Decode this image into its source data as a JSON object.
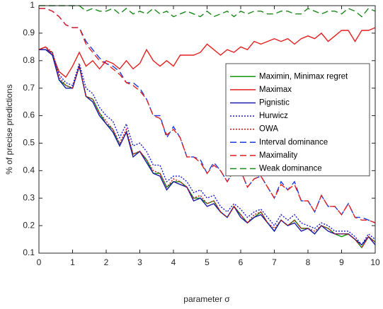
{
  "chart_data": {
    "type": "line",
    "xlabel": "parameter σ",
    "ylabel": "% of precise predictions",
    "x": [
      0,
      0.2,
      0.4,
      0.6,
      0.8,
      1,
      1.2,
      1.4,
      1.6,
      1.8,
      2,
      2.2,
      2.4,
      2.6,
      2.8,
      3,
      3.2,
      3.4,
      3.6,
      3.8,
      4,
      4.2,
      4.4,
      4.6,
      4.8,
      5,
      5.2,
      5.4,
      5.6,
      5.8,
      6,
      6.2,
      6.4,
      6.6,
      6.8,
      7,
      7.2,
      7.4,
      7.6,
      7.8,
      8,
      8.2,
      8.4,
      8.6,
      8.8,
      9,
      9.2,
      9.4,
      9.6,
      9.8,
      10
    ],
    "xlim": [
      0,
      10
    ],
    "xticks": [
      0,
      1,
      2,
      3,
      4,
      5,
      6,
      7,
      8,
      9,
      10
    ],
    "ylim": [
      0.1,
      1
    ],
    "yticks": [
      0.1,
      0.2,
      0.3,
      0.4,
      0.5,
      0.6,
      0.7,
      0.8,
      0.9,
      1
    ],
    "legend": "right",
    "series": [
      {
        "name": "Maximin, Minimax regret",
        "color": "#119911",
        "style": "solid",
        "values": [
          0.84,
          0.84,
          0.83,
          0.73,
          0.71,
          0.7,
          0.78,
          0.67,
          0.66,
          0.61,
          0.57,
          0.55,
          0.49,
          0.54,
          0.46,
          0.47,
          0.44,
          0.39,
          0.39,
          0.34,
          0.36,
          0.36,
          0.34,
          0.3,
          0.3,
          0.28,
          0.29,
          0.25,
          0.23,
          0.27,
          0.24,
          0.21,
          0.23,
          0.25,
          0.21,
          0.18,
          0.22,
          0.2,
          0.22,
          0.19,
          0.19,
          0.17,
          0.2,
          0.19,
          0.17,
          0.16,
          0.17,
          0.15,
          0.12,
          0.16,
          0.14
        ]
      },
      {
        "name": "Maximax",
        "color": "#e41f1f",
        "style": "solid",
        "values": [
          0.84,
          0.85,
          0.82,
          0.76,
          0.74,
          0.78,
          0.83,
          0.78,
          0.8,
          0.77,
          0.8,
          0.79,
          0.77,
          0.8,
          0.77,
          0.79,
          0.84,
          0.8,
          0.78,
          0.8,
          0.78,
          0.82,
          0.82,
          0.82,
          0.83,
          0.86,
          0.84,
          0.82,
          0.84,
          0.83,
          0.85,
          0.84,
          0.87,
          0.86,
          0.87,
          0.88,
          0.87,
          0.88,
          0.86,
          0.88,
          0.89,
          0.88,
          0.9,
          0.87,
          0.89,
          0.91,
          0.91,
          0.87,
          0.91,
          0.91,
          0.92
        ]
      },
      {
        "name": "Pignistic",
        "color": "#1a1aa8",
        "style": "solid",
        "values": [
          0.84,
          0.84,
          0.82,
          0.73,
          0.7,
          0.7,
          0.78,
          0.67,
          0.65,
          0.6,
          0.57,
          0.54,
          0.49,
          0.54,
          0.45,
          0.47,
          0.43,
          0.39,
          0.38,
          0.33,
          0.36,
          0.35,
          0.34,
          0.29,
          0.3,
          0.27,
          0.28,
          0.25,
          0.23,
          0.27,
          0.23,
          0.21,
          0.23,
          0.24,
          0.21,
          0.18,
          0.22,
          0.2,
          0.21,
          0.18,
          0.19,
          0.17,
          0.2,
          0.18,
          0.17,
          0.17,
          0.17,
          0.15,
          0.13,
          0.16,
          0.13
        ]
      },
      {
        "name": "Hurwicz",
        "color": "#1a1ad0",
        "style": "dotted",
        "values": [
          0.84,
          0.84,
          0.83,
          0.75,
          0.72,
          0.71,
          0.79,
          0.7,
          0.68,
          0.63,
          0.6,
          0.58,
          0.52,
          0.57,
          0.49,
          0.5,
          0.47,
          0.42,
          0.42,
          0.36,
          0.38,
          0.38,
          0.36,
          0.32,
          0.33,
          0.3,
          0.31,
          0.27,
          0.25,
          0.28,
          0.26,
          0.23,
          0.25,
          0.26,
          0.23,
          0.2,
          0.24,
          0.22,
          0.24,
          0.21,
          0.2,
          0.19,
          0.21,
          0.2,
          0.18,
          0.18,
          0.18,
          0.16,
          0.13,
          0.17,
          0.15
        ]
      },
      {
        "name": "OWA",
        "color": "#cc1111",
        "style": "dotted",
        "values": [
          0.84,
          0.85,
          0.83,
          0.74,
          0.71,
          0.7,
          0.78,
          0.67,
          0.66,
          0.61,
          0.58,
          0.55,
          0.5,
          0.55,
          0.46,
          0.47,
          0.44,
          0.4,
          0.39,
          0.34,
          0.37,
          0.36,
          0.34,
          0.3,
          0.31,
          0.28,
          0.29,
          0.25,
          0.23,
          0.27,
          0.24,
          0.21,
          0.24,
          0.25,
          0.21,
          0.19,
          0.22,
          0.2,
          0.22,
          0.19,
          0.19,
          0.18,
          0.2,
          0.19,
          0.17,
          0.17,
          0.17,
          0.15,
          0.12,
          0.16,
          0.14
        ]
      },
      {
        "name": "Interval dominance",
        "color": "#1a3ae0",
        "style": "dashed",
        "values": [
          0.99,
          0.99,
          0.98,
          0.96,
          0.93,
          0.92,
          0.92,
          0.87,
          0.84,
          0.81,
          0.79,
          0.78,
          0.76,
          0.72,
          0.72,
          0.7,
          0.66,
          0.6,
          0.6,
          0.52,
          0.56,
          0.52,
          0.45,
          0.45,
          0.44,
          0.39,
          0.43,
          0.4,
          0.36,
          0.4,
          0.4,
          0.34,
          0.37,
          0.38,
          0.34,
          0.3,
          0.36,
          0.33,
          0.36,
          0.29,
          0.29,
          0.25,
          0.31,
          0.27,
          0.27,
          0.24,
          0.28,
          0.23,
          0.23,
          0.22,
          0.21
        ]
      },
      {
        "name": "Maximality",
        "color": "#e41f1f",
        "style": "dashed",
        "values": [
          0.99,
          0.99,
          0.98,
          0.96,
          0.93,
          0.92,
          0.92,
          0.86,
          0.83,
          0.8,
          0.79,
          0.77,
          0.75,
          0.72,
          0.71,
          0.69,
          0.66,
          0.6,
          0.59,
          0.53,
          0.55,
          0.52,
          0.45,
          0.45,
          0.43,
          0.39,
          0.42,
          0.4,
          0.36,
          0.4,
          0.4,
          0.34,
          0.37,
          0.38,
          0.34,
          0.3,
          0.35,
          0.33,
          0.35,
          0.29,
          0.29,
          0.25,
          0.31,
          0.27,
          0.27,
          0.24,
          0.28,
          0.23,
          0.22,
          0.22,
          0.21
        ]
      },
      {
        "name": "Weak dominance",
        "color": "#1a8a1a",
        "style": "dashed",
        "values": [
          1,
          1,
          1,
          1,
          1,
          1,
          1,
          0.98,
          0.99,
          0.98,
          0.98,
          0.99,
          0.97,
          0.99,
          0.97,
          0.98,
          0.97,
          0.99,
          0.97,
          0.98,
          0.96,
          0.97,
          0.98,
          0.97,
          0.96,
          0.98,
          0.96,
          0.97,
          0.98,
          0.96,
          0.98,
          0.97,
          0.98,
          0.98,
          0.97,
          0.97,
          0.98,
          0.98,
          0.97,
          0.97,
          0.99,
          0.98,
          0.97,
          0.98,
          0.98,
          0.97,
          0.99,
          0.98,
          0.96,
          0.99,
          0.98
        ]
      }
    ]
  }
}
